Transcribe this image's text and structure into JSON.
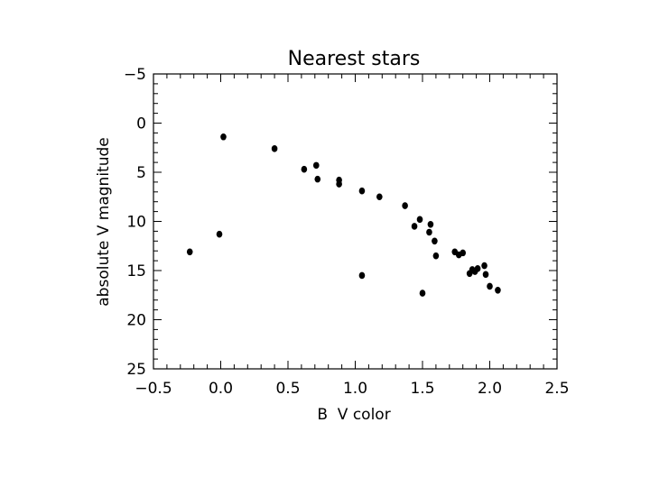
{
  "chart_data": {
    "type": "scatter",
    "title": "Nearest stars",
    "xlabel": "B  V color",
    "ylabel": "absolute V magnitude",
    "xlim": [
      -0.5,
      2.5
    ],
    "ylim": [
      -5,
      25
    ],
    "y_inverted": true,
    "grid": false,
    "x_major_ticks": [
      -0.5,
      0.0,
      0.5,
      1.0,
      1.5,
      2.0,
      2.5
    ],
    "x_tick_labels": [
      "−0.5",
      "0.0",
      "0.5",
      "1.0",
      "1.5",
      "2.0",
      "2.5"
    ],
    "y_major_ticks": [
      -5,
      0,
      5,
      10,
      15,
      20,
      25
    ],
    "y_tick_labels": [
      "−5",
      "0",
      "5",
      "10",
      "15",
      "20",
      "25"
    ],
    "marker_color": "#000000",
    "points": [
      {
        "x": -0.23,
        "y": 13.1
      },
      {
        "x": -0.01,
        "y": 11.3
      },
      {
        "x": 0.02,
        "y": 1.4
      },
      {
        "x": 0.4,
        "y": 2.6
      },
      {
        "x": 0.62,
        "y": 4.7
      },
      {
        "x": 0.71,
        "y": 4.3
      },
      {
        "x": 0.72,
        "y": 5.7
      },
      {
        "x": 0.88,
        "y": 5.8
      },
      {
        "x": 0.88,
        "y": 6.2
      },
      {
        "x": 1.05,
        "y": 6.9
      },
      {
        "x": 1.05,
        "y": 15.5
      },
      {
        "x": 1.18,
        "y": 7.5
      },
      {
        "x": 1.37,
        "y": 8.4
      },
      {
        "x": 1.44,
        "y": 10.5
      },
      {
        "x": 1.48,
        "y": 9.8
      },
      {
        "x": 1.5,
        "y": 17.3
      },
      {
        "x": 1.55,
        "y": 11.1
      },
      {
        "x": 1.56,
        "y": 10.3
      },
      {
        "x": 1.59,
        "y": 12.0
      },
      {
        "x": 1.6,
        "y": 13.5
      },
      {
        "x": 1.74,
        "y": 13.1
      },
      {
        "x": 1.77,
        "y": 13.4
      },
      {
        "x": 1.8,
        "y": 13.2
      },
      {
        "x": 1.85,
        "y": 15.3
      },
      {
        "x": 1.87,
        "y": 14.9
      },
      {
        "x": 1.89,
        "y": 15.1
      },
      {
        "x": 1.91,
        "y": 14.8
      },
      {
        "x": 1.96,
        "y": 14.5
      },
      {
        "x": 1.97,
        "y": 15.4
      },
      {
        "x": 2.0,
        "y": 16.6
      },
      {
        "x": 2.06,
        "y": 17.0
      }
    ]
  }
}
